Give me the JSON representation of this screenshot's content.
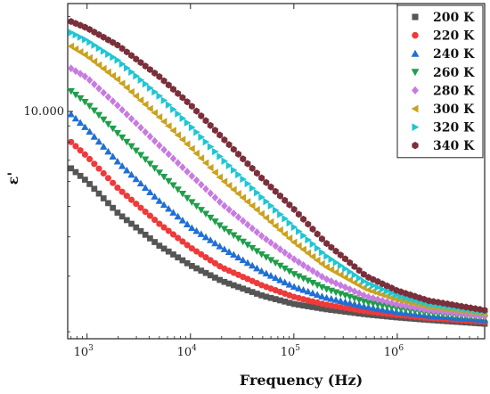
{
  "chart_data": {
    "type": "scatter",
    "xlabel": "Frequency (Hz)",
    "ylabel": "ε'",
    "x_scale": "log",
    "y_scale": "log",
    "xlim": [
      650,
      7000000
    ],
    "ylim": [
      1900,
      22000
    ],
    "x_ticks": [
      {
        "value": 1000,
        "base": "10",
        "exp": "3"
      },
      {
        "value": 10000,
        "base": "10",
        "exp": "4"
      },
      {
        "value": 100000,
        "base": "10",
        "exp": "5"
      },
      {
        "value": 1000000,
        "base": "10",
        "exp": "6"
      }
    ],
    "y_ticks": [
      {
        "value": 10000,
        "label": "10.000"
      }
    ],
    "legend_position": "top-right",
    "grid": false,
    "x": [
      700,
      1000,
      2000,
      5000,
      10000,
      20000,
      50000,
      100000,
      200000,
      500000,
      1000000,
      2000000,
      7000000
    ],
    "series": [
      {
        "name": "200 K",
        "marker": "square",
        "color": "#555555",
        "values": [
          6600,
          6000,
          4750,
          3750,
          3250,
          2900,
          2600,
          2450,
          2360,
          2270,
          2220,
          2180,
          2120
        ]
      },
      {
        "name": "220 K",
        "marker": "circle",
        "color": "#ee3a3a",
        "values": [
          8000,
          7200,
          5700,
          4400,
          3700,
          3200,
          2800,
          2580,
          2440,
          2320,
          2260,
          2210,
          2150
        ]
      },
      {
        "name": "240 K",
        "marker": "triangle-up",
        "color": "#1f6fd6",
        "values": [
          9800,
          8800,
          6900,
          5200,
          4300,
          3700,
          3100,
          2780,
          2570,
          2400,
          2310,
          2250,
          2180
        ]
      },
      {
        "name": "260 K",
        "marker": "triangle-down",
        "color": "#1f9e4a",
        "values": [
          11600,
          10600,
          8500,
          6400,
          5200,
          4300,
          3500,
          3050,
          2740,
          2480,
          2370,
          2290,
          2210
        ]
      },
      {
        "name": "280 K",
        "marker": "diamond",
        "color": "#c77be0",
        "values": [
          13700,
          12800,
          10400,
          7800,
          6300,
          5100,
          4000,
          3400,
          2950,
          2590,
          2440,
          2340,
          2240
        ]
      },
      {
        "name": "300 K",
        "marker": "triangle-left",
        "color": "#caa21f",
        "values": [
          16100,
          15000,
          12600,
          9600,
          7700,
          6100,
          4700,
          3850,
          3230,
          2730,
          2530,
          2400,
          2280
        ]
      },
      {
        "name": "320 K",
        "marker": "triangle-right",
        "color": "#1fc6d3",
        "values": [
          17800,
          16800,
          14500,
          11200,
          9000,
          7100,
          5300,
          4300,
          3500,
          2860,
          2610,
          2450,
          2310
        ]
      },
      {
        "name": "340 K",
        "marker": "hexagon",
        "color": "#7a2f3a",
        "values": [
          19300,
          18400,
          16200,
          12900,
          10500,
          8300,
          6100,
          4900,
          3850,
          3000,
          2700,
          2510,
          2340
        ]
      }
    ]
  }
}
